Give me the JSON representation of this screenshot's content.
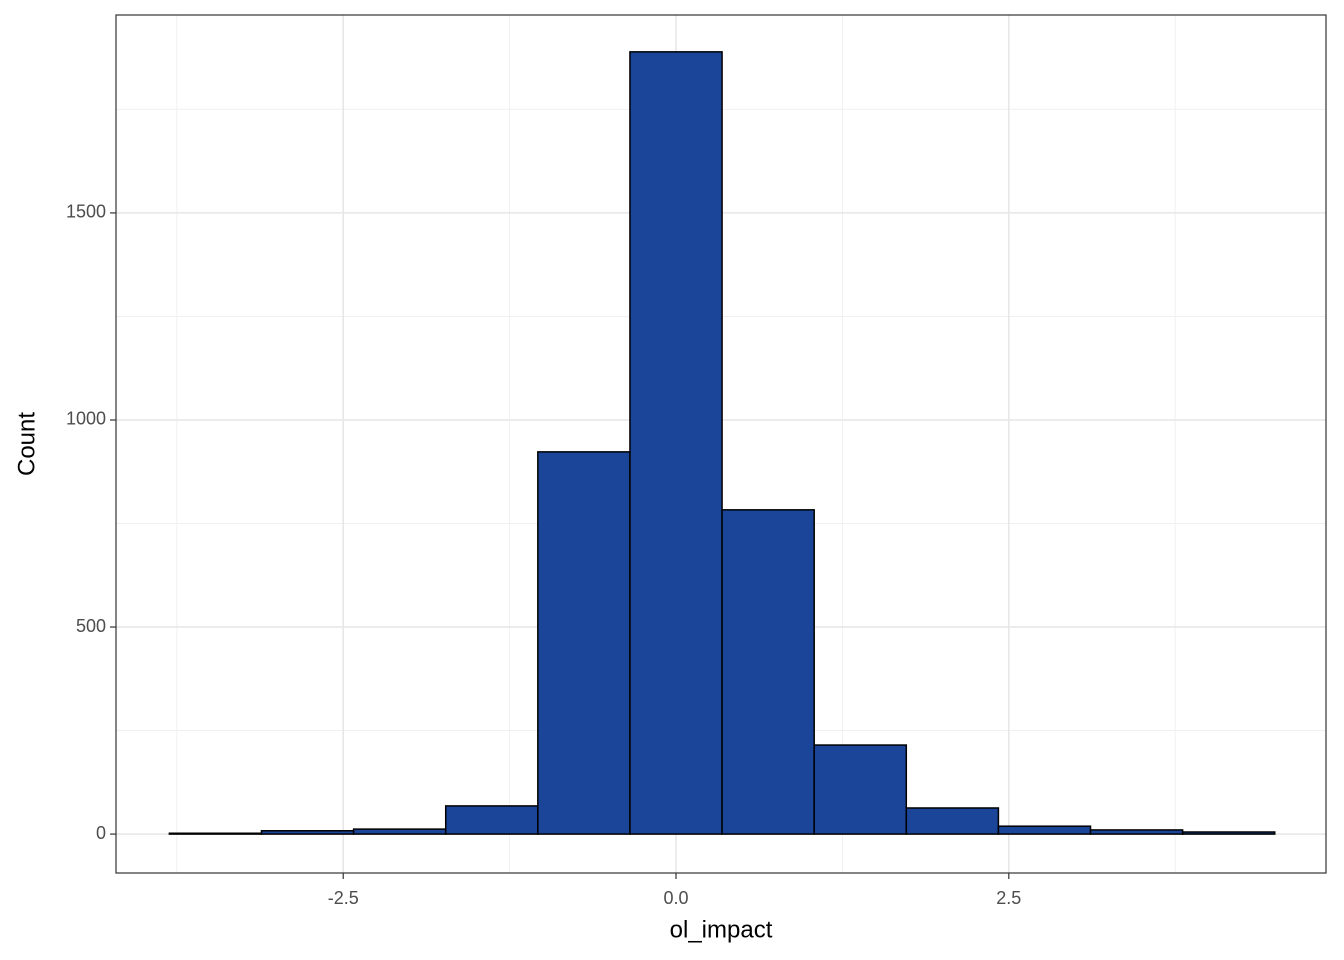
{
  "chart_data": {
    "type": "histogram",
    "x_label": "ol_impact",
    "y_label": "Count",
    "bins": [
      -3.806,
      -3.114,
      -2.422,
      -1.73,
      -1.038,
      -0.346,
      0.346,
      1.038,
      1.73,
      2.422,
      3.114,
      3.806,
      4.498
    ],
    "counts": [
      2,
      8,
      12,
      68,
      923,
      1889,
      783,
      215,
      63,
      19,
      10,
      5
    ],
    "color": "#1a4599",
    "edgecolor": "#000000",
    "xlim": [
      -4.207,
      4.883
    ],
    "ylim": [
      -94,
      1978
    ],
    "xticks": [
      -2.5,
      {
        "value": 0,
        "label": "0.0"
      },
      2.5
    ],
    "yticks": [
      0,
      500,
      1000,
      1500
    ],
    "grid": true
  }
}
